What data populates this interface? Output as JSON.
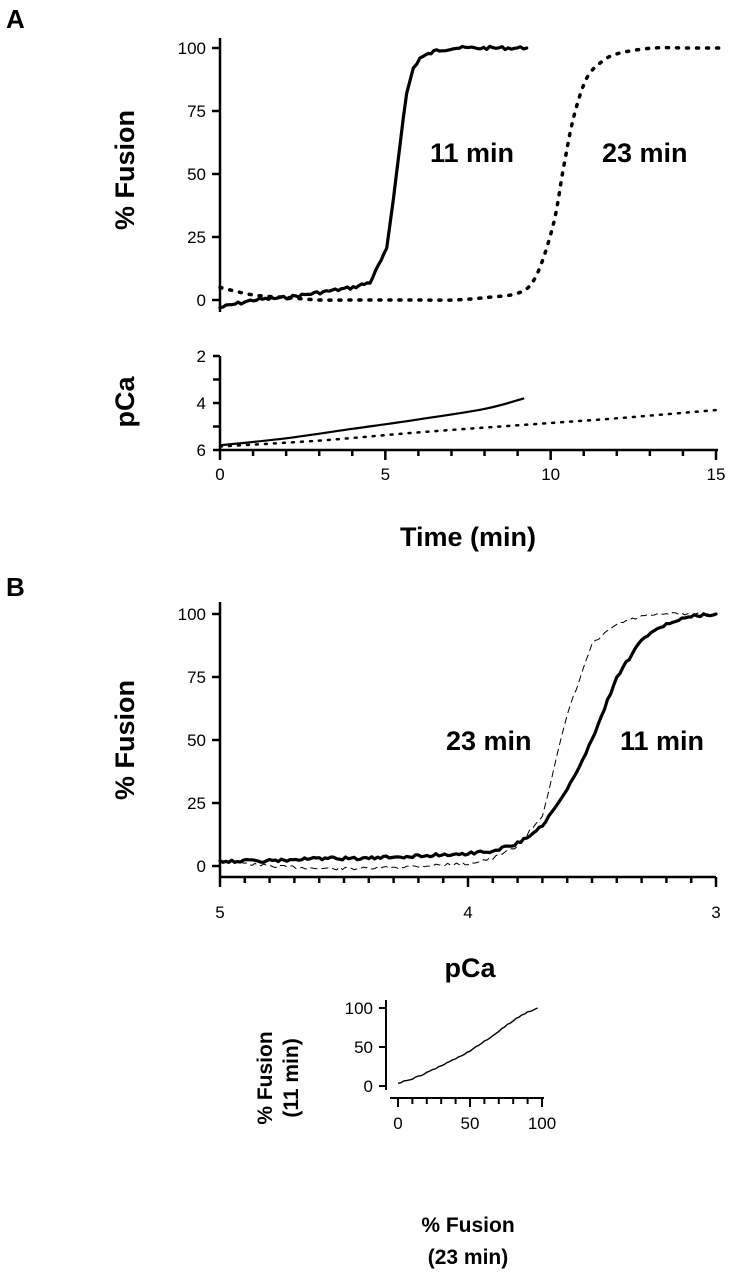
{
  "figure": {
    "panels": [
      "A",
      "B"
    ]
  },
  "chart_data": [
    {
      "id": "A-top",
      "type": "line",
      "ylabel": "% Fusion",
      "xlim": [
        0,
        15
      ],
      "ylim": [
        0,
        100
      ],
      "yticks": [
        0,
        25,
        50,
        75,
        100
      ],
      "series": [
        {
          "name": "11 min",
          "style": "solid",
          "x": [
            0,
            1,
            2,
            3,
            4,
            4.5,
            5,
            5.2,
            5.4,
            5.6,
            5.8,
            6,
            6.5,
            7,
            8,
            9.2
          ],
          "y": [
            -3,
            0,
            1,
            3,
            5,
            7,
            20,
            40,
            62,
            82,
            92,
            96,
            99,
            100,
            100,
            100
          ]
        },
        {
          "name": "23 min",
          "style": "dotted",
          "x": [
            0,
            1,
            2,
            3,
            4,
            5,
            6,
            7,
            8,
            9,
            9.5,
            10,
            10.3,
            10.6,
            11,
            11.5,
            12,
            13,
            14,
            15
          ],
          "y": [
            5,
            2,
            1,
            0,
            0,
            0,
            0,
            0,
            1,
            3,
            10,
            30,
            52,
            72,
            88,
            95,
            98,
            100,
            100,
            100
          ]
        }
      ],
      "annotations": [
        "11 min",
        "23 min"
      ]
    },
    {
      "id": "A-bottom",
      "type": "line",
      "xlabel": "Time (min)",
      "ylabel": "pCa",
      "xlim": [
        0,
        15
      ],
      "ylim": [
        6,
        2
      ],
      "xticks": [
        0,
        5,
        10,
        15
      ],
      "yticks": [
        2,
        4,
        6
      ],
      "series": [
        {
          "name": "11 min",
          "style": "solid",
          "x": [
            0,
            2,
            4,
            6,
            8,
            9.2
          ],
          "y": [
            5.8,
            5.5,
            5.1,
            4.7,
            4.25,
            3.8
          ]
        },
        {
          "name": "23 min",
          "style": "dotted",
          "x": [
            0,
            3,
            6,
            9,
            12,
            15
          ],
          "y": [
            5.85,
            5.6,
            5.25,
            4.95,
            4.65,
            4.3
          ]
        }
      ]
    },
    {
      "id": "B-main",
      "type": "line",
      "xlabel": "pCa",
      "ylabel": "% Fusion",
      "xlim": [
        5,
        3
      ],
      "ylim": [
        0,
        100
      ],
      "xticks": [
        5,
        4,
        3
      ],
      "yticks": [
        0,
        25,
        50,
        75,
        100
      ],
      "series": [
        {
          "name": "11 min",
          "style": "solid",
          "x": [
            5,
            4.8,
            4.6,
            4.4,
            4.2,
            4.0,
            3.9,
            3.8,
            3.7,
            3.6,
            3.5,
            3.4,
            3.3,
            3.2,
            3.1,
            3.0
          ],
          "y": [
            2,
            2,
            3,
            3,
            4,
            5,
            6,
            9,
            16,
            30,
            50,
            75,
            90,
            96,
            99,
            100
          ]
        },
        {
          "name": "23 min",
          "style": "dashed",
          "x": [
            5,
            4.8,
            4.6,
            4.4,
            4.2,
            4.0,
            3.9,
            3.8,
            3.7,
            3.6,
            3.5,
            3.4,
            3.3,
            3.2,
            3.1,
            3.0
          ],
          "y": [
            2,
            0,
            -1,
            -1,
            0,
            1,
            3,
            8,
            20,
            60,
            88,
            96,
            99,
            100,
            100,
            100
          ]
        }
      ],
      "annotations": [
        "23 min",
        "11 min"
      ]
    },
    {
      "id": "B-inset",
      "type": "line",
      "xlabel": [
        "% Fusion",
        "(23 min)"
      ],
      "ylabel": [
        "% Fusion",
        "(11 min)"
      ],
      "xlim": [
        0,
        100
      ],
      "ylim": [
        0,
        100
      ],
      "xticks": [
        0,
        50,
        100
      ],
      "yticks": [
        0,
        50,
        100
      ],
      "series": [
        {
          "style": "solid",
          "x": [
            0,
            10,
            20,
            30,
            40,
            50,
            60,
            70,
            80,
            90,
            97
          ],
          "y": [
            4,
            9,
            17,
            26,
            35,
            45,
            57,
            70,
            84,
            95,
            100
          ]
        }
      ]
    }
  ]
}
